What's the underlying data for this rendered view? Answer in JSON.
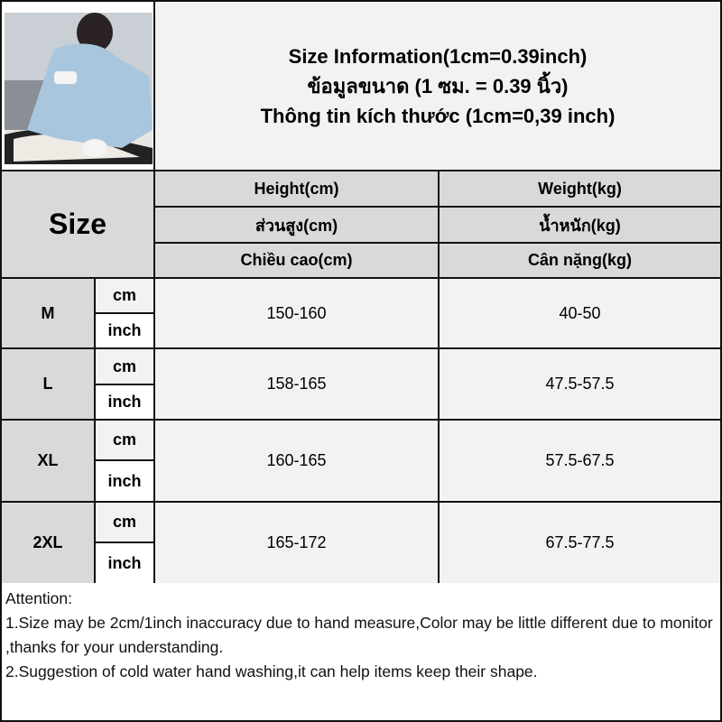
{
  "title": [
    "Size Information(1cm=0.39inch)",
    "ข้อมูลขนาด (1 ซม. = 0.39 นิ้ว)",
    "Thông tin kích thước (1cm=0,39 inch)"
  ],
  "header": {
    "size": "Size",
    "height": [
      "Height(cm)",
      "ส่วนสูง(cm)",
      "Chiều cao(cm)"
    ],
    "weight": [
      "Weight(kg)",
      "น้ำหนัก(kg)",
      "Cân nặng(kg)"
    ]
  },
  "units": {
    "cm": "cm",
    "inch": "inch"
  },
  "rows": [
    {
      "size": "M",
      "height": "150-160",
      "weight": "40-50"
    },
    {
      "size": "L",
      "height": "158-165",
      "weight": "47.5-57.5"
    },
    {
      "size": "XL",
      "height": "160-165",
      "weight": "57.5-67.5"
    },
    {
      "size": "2XL",
      "height": "165-172",
      "weight": "67.5-77.5"
    }
  ],
  "attention": [
    "Attention:",
    "1.Size may be 2cm/1inch inaccuracy due to hand measure,Color may be little different due to monitor ,thanks for your understanding.",
    "2.Suggestion of cold water hand washing,it can help items keep their shape."
  ]
}
